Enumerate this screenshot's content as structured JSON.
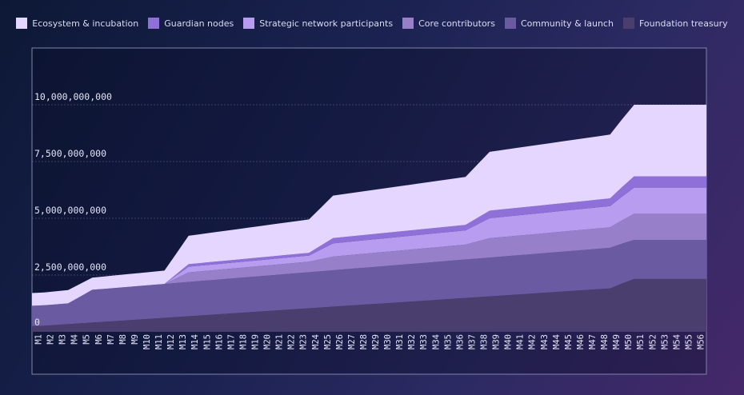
{
  "chart_data": {
    "type": "area",
    "stacked": true,
    "legend_position": "top",
    "grid": true,
    "ylim": [
      0,
      10000000000
    ],
    "yticks": [
      {
        "value": 0,
        "label": "0"
      },
      {
        "value": 2500000000,
        "label": "2,500,000,000"
      },
      {
        "value": 5000000000,
        "label": "5,000,000,000"
      },
      {
        "value": 7500000000,
        "label": "7,500,000,000"
      },
      {
        "value": 10000000000,
        "label": "10,000,000,000"
      }
    ],
    "categories": [
      "M1",
      "M2",
      "M3",
      "M4",
      "M5",
      "M6",
      "M7",
      "M8",
      "M9",
      "M10",
      "M11",
      "M12",
      "M13",
      "M14",
      "M15",
      "M16",
      "M17",
      "M18",
      "M19",
      "M20",
      "M21",
      "M22",
      "M23",
      "M24",
      "M25",
      "M26",
      "M27",
      "M28",
      "M29",
      "M30",
      "M31",
      "M32",
      "M33",
      "M34",
      "M35",
      "M36",
      "M37",
      "M38",
      "M39",
      "M40",
      "M41",
      "M42",
      "M43",
      "M44",
      "M45",
      "M46",
      "M47",
      "M48",
      "M49",
      "M50",
      "M51",
      "M52",
      "M53",
      "M54",
      "M55",
      "M56"
    ],
    "series": [
      {
        "name": "Foundation treasury",
        "color": "#4a3e6e",
        "values": [
          250000000,
          285000000,
          320000000,
          355000000,
          390000000,
          425000000,
          460000000,
          495000000,
          530000000,
          565000000,
          600000000,
          635000000,
          670000000,
          705000000,
          740000000,
          775000000,
          810000000,
          845000000,
          880000000,
          915000000,
          950000000,
          985000000,
          1020000000,
          1055000000,
          1090000000,
          1125000000,
          1160000000,
          1195000000,
          1230000000,
          1265000000,
          1300000000,
          1335000000,
          1370000000,
          1405000000,
          1440000000,
          1475000000,
          1510000000,
          1545000000,
          1580000000,
          1615000000,
          1650000000,
          1685000000,
          1720000000,
          1755000000,
          1790000000,
          1825000000,
          1860000000,
          1895000000,
          1930000000,
          2330000000,
          2330000000,
          2330000000,
          2330000000,
          2330000000,
          2330000000,
          2330000000
        ]
      },
      {
        "name": "Community & launch",
        "color": "#6a5aa2",
        "values": [
          900000000,
          906000000,
          912000000,
          918000000,
          1440000000,
          1448000000,
          1456000000,
          1464000000,
          1472000000,
          1480000000,
          1488000000,
          1496000000,
          1504000000,
          1512000000,
          1520000000,
          1528000000,
          1536000000,
          1544000000,
          1552000000,
          1560000000,
          1568000000,
          1576000000,
          1584000000,
          1592000000,
          1600000000,
          1608000000,
          1616000000,
          1624000000,
          1632000000,
          1640000000,
          1648000000,
          1656000000,
          1664000000,
          1672000000,
          1680000000,
          1688000000,
          1696000000,
          1704000000,
          1712000000,
          1720000000,
          1728000000,
          1736000000,
          1744000000,
          1752000000,
          1760000000,
          1768000000,
          1776000000,
          1784000000,
          1792000000,
          1720000000,
          1720000000,
          1720000000,
          1720000000,
          1720000000,
          1720000000,
          1720000000
        ]
      },
      {
        "name": "Core contributors",
        "color": "#987fca",
        "values": [
          0,
          0,
          0,
          0,
          0,
          0,
          0,
          0,
          0,
          0,
          0,
          0,
          420000000,
          424000000,
          428000000,
          432000000,
          436000000,
          440000000,
          444000000,
          448000000,
          452000000,
          456000000,
          460000000,
          464000000,
          600000000,
          605000000,
          610000000,
          615000000,
          620000000,
          625000000,
          630000000,
          635000000,
          640000000,
          645000000,
          650000000,
          655000000,
          660000000,
          850000000,
          855000000,
          860000000,
          865000000,
          870000000,
          875000000,
          880000000,
          885000000,
          890000000,
          895000000,
          900000000,
          905000000,
          1150000000,
          1150000000,
          1150000000,
          1150000000,
          1150000000,
          1150000000,
          1150000000
        ]
      },
      {
        "name": "Strategic network participants",
        "color": "#b79cf0",
        "values": [
          0,
          0,
          0,
          0,
          0,
          0,
          0,
          0,
          0,
          0,
          0,
          0,
          250000000,
          252000000,
          254000000,
          256000000,
          258000000,
          260000000,
          262000000,
          264000000,
          266000000,
          268000000,
          270000000,
          272000000,
          580000000,
          584000000,
          588000000,
          592000000,
          596000000,
          600000000,
          604000000,
          608000000,
          612000000,
          616000000,
          620000000,
          624000000,
          628000000,
          880000000,
          885000000,
          890000000,
          895000000,
          900000000,
          905000000,
          910000000,
          915000000,
          920000000,
          925000000,
          930000000,
          935000000,
          1150000000,
          1150000000,
          1150000000,
          1150000000,
          1150000000,
          1150000000,
          1150000000
        ]
      },
      {
        "name": "Guardian nodes",
        "color": "#8f6fd8",
        "values": [
          0,
          0,
          0,
          0,
          0,
          0,
          0,
          0,
          0,
          0,
          0,
          0,
          110000000,
          111000000,
          112000000,
          113000000,
          114000000,
          115000000,
          116000000,
          117000000,
          118000000,
          119000000,
          120000000,
          121000000,
          230000000,
          231000000,
          232000000,
          233000000,
          234000000,
          235000000,
          236000000,
          237000000,
          238000000,
          239000000,
          240000000,
          241000000,
          242000000,
          330000000,
          331000000,
          332000000,
          333000000,
          334000000,
          335000000,
          336000000,
          337000000,
          338000000,
          339000000,
          340000000,
          341000000,
          500000000,
          500000000,
          500000000,
          500000000,
          500000000,
          500000000,
          500000000
        ]
      },
      {
        "name": "Ecosystem & incubation",
        "color": "#e4d6ff",
        "values": [
          560000000,
          570000000,
          580000000,
          590000000,
          530000000,
          539000000,
          548000000,
          557000000,
          566000000,
          575000000,
          584000000,
          593000000,
          1240000000,
          1262000000,
          1284000000,
          1306000000,
          1328000000,
          1350000000,
          1372000000,
          1394000000,
          1416000000,
          1438000000,
          1460000000,
          1482000000,
          1860000000,
          1882000000,
          1904000000,
          1926000000,
          1948000000,
          1970000000,
          1992000000,
          2014000000,
          2036000000,
          2058000000,
          2080000000,
          2102000000,
          2124000000,
          2580000000,
          2602000000,
          2624000000,
          2646000000,
          2668000000,
          2690000000,
          2712000000,
          2734000000,
          2756000000,
          2778000000,
          2800000000,
          2822000000,
          3150000000,
          3150000000,
          3150000000,
          3150000000,
          3150000000,
          3150000000,
          3150000000
        ]
      }
    ]
  }
}
